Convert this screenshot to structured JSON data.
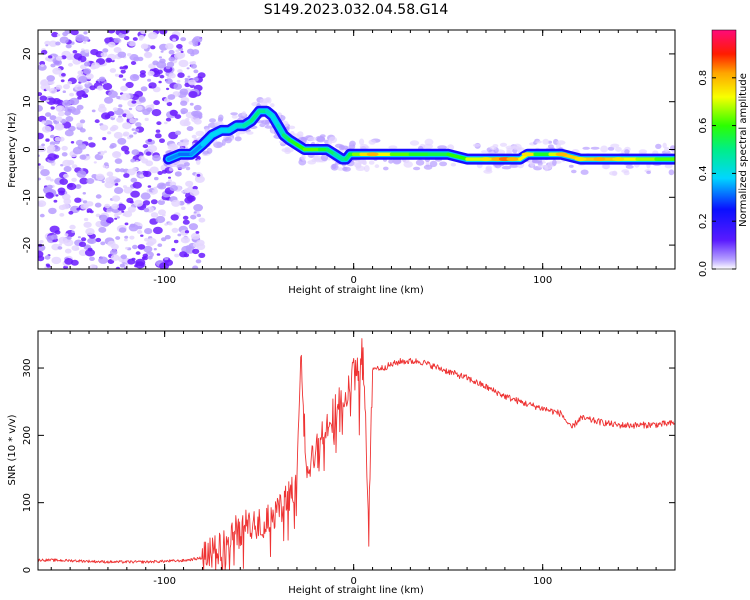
{
  "title": "S149.2023.032.04.58.G14",
  "colors": {
    "snr_line": "#ee3333",
    "scatter_purple": "#6a1bff",
    "scatter_light": "#d9c2ff"
  },
  "chart_data": [
    {
      "type": "heatmap",
      "xlabel": "Height of straight line (km)",
      "ylabel": "Frequency (Hz)",
      "xlim": [
        -167,
        170
      ],
      "ylim": [
        -25,
        25
      ],
      "xticks": [
        -100,
        0,
        100
      ],
      "yticks": [
        -20,
        -10,
        0,
        10,
        20
      ],
      "colorbar": {
        "label": "Normalized spectral amplitude",
        "range": [
          0.0,
          1.0
        ],
        "ticks": [
          "0.0",
          "0.2",
          "0.4",
          "0.6",
          "0.8"
        ],
        "colormap": "rainbow (violet → blue → cyan → green → yellow → orange → red → magenta)"
      },
      "ridge": {
        "x": [
          -98,
          -92,
          -86,
          -80,
          -75,
          -70,
          -66,
          -62,
          -58,
          -54,
          -50,
          -46,
          -43,
          -40,
          -37,
          -34,
          -30,
          -26,
          -22,
          -18,
          -14,
          -10,
          -6,
          -4,
          -2,
          0,
          4,
          10,
          20,
          30,
          40,
          50,
          60,
          70,
          76,
          80,
          84,
          88,
          92,
          96,
          100,
          104,
          110,
          120,
          130,
          140,
          150,
          160,
          170
        ],
        "frequency": [
          -2,
          -1,
          -1,
          1,
          3,
          4,
          4,
          5,
          5,
          6,
          8,
          8,
          7,
          5,
          3,
          2,
          1,
          0,
          0,
          0,
          0,
          -1,
          -2,
          -2,
          -1,
          -1,
          -1,
          -1,
          -1,
          -1,
          -1,
          -1,
          -2,
          -2,
          -2,
          -2,
          -2,
          -2,
          -1,
          -1,
          -1,
          -1,
          -1,
          -2,
          -2,
          -2,
          -2,
          -2,
          -2
        ],
        "amplitude": [
          0.35,
          0.3,
          0.32,
          0.35,
          0.4,
          0.38,
          0.4,
          0.42,
          0.45,
          0.5,
          0.52,
          0.45,
          0.42,
          0.4,
          0.5,
          0.55,
          0.6,
          0.6,
          0.65,
          0.6,
          0.55,
          0.5,
          0.45,
          0.5,
          0.55,
          0.6,
          0.7,
          0.8,
          0.65,
          0.6,
          0.55,
          0.55,
          0.65,
          0.75,
          0.8,
          0.85,
          0.8,
          0.7,
          0.75,
          0.6,
          0.55,
          0.6,
          0.8,
          0.75,
          0.8,
          0.75,
          0.7,
          0.65,
          0.6
        ]
      },
      "noise_region_x": [
        -167,
        -80
      ]
    },
    {
      "type": "line",
      "xlabel": "Height of straight line (km)",
      "ylabel": "SNR (10 * v/v)",
      "xlim": [
        -167,
        170
      ],
      "ylim": [
        0,
        355
      ],
      "xticks": [
        -100,
        0,
        100
      ],
      "yticks": [
        0,
        100,
        200,
        300
      ],
      "series": [
        {
          "x": [
            -167,
            -150,
            -130,
            -110,
            -90,
            -80,
            -75,
            -70,
            -65,
            -60,
            -55,
            -50,
            -45,
            -40,
            -35,
            -30,
            -28,
            -25,
            -22,
            -20,
            -17,
            -15,
            -12,
            -10,
            -7,
            -5,
            -2,
            0,
            3,
            5,
            8,
            10,
            15,
            20,
            25,
            30,
            35,
            40,
            45,
            50,
            60,
            70,
            80,
            90,
            100,
            110,
            115,
            120,
            130,
            140,
            150,
            160,
            170
          ],
          "values": [
            15,
            14,
            12,
            12,
            14,
            18,
            30,
            40,
            50,
            60,
            65,
            70,
            75,
            90,
            110,
            130,
            330,
            150,
            170,
            180,
            200,
            210,
            230,
            240,
            250,
            255,
            265,
            330,
            270,
            350,
            55,
            300,
            300,
            305,
            310,
            310,
            310,
            305,
            300,
            295,
            285,
            272,
            258,
            248,
            240,
            232,
            210,
            226,
            220,
            215,
            215,
            216,
            218
          ]
        }
      ]
    }
  ]
}
